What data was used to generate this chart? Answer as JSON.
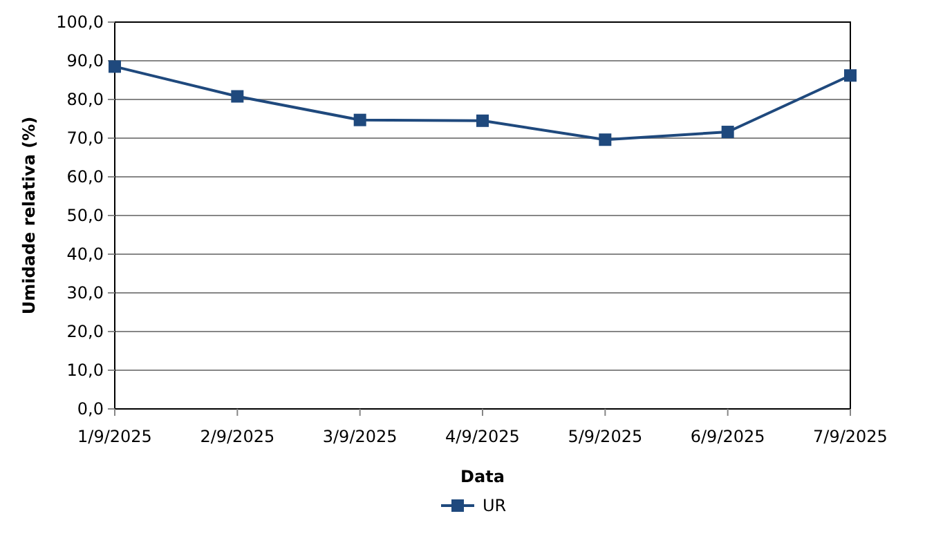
{
  "chart_data": {
    "type": "line",
    "xlabel": "Data",
    "ylabel": "Umidade relativa (%)",
    "categories": [
      "1/9/2025",
      "2/9/2025",
      "3/9/2025",
      "4/9/2025",
      "5/9/2025",
      "6/9/2025",
      "7/9/2025"
    ],
    "series": [
      {
        "name": "UR",
        "color": "#1f497d",
        "values": [
          88.5,
          80.8,
          74.7,
          74.5,
          69.6,
          71.6,
          86.2
        ]
      }
    ],
    "ylim": [
      0,
      100
    ],
    "yticks": [
      {
        "value": 0,
        "label": "0,0"
      },
      {
        "value": 10,
        "label": "10,0"
      },
      {
        "value": 20,
        "label": "20,0"
      },
      {
        "value": 30,
        "label": "30,0"
      },
      {
        "value": 40,
        "label": "40,0"
      },
      {
        "value": 50,
        "label": "50,0"
      },
      {
        "value": 60,
        "label": "60,0"
      },
      {
        "value": 70,
        "label": "70,0"
      },
      {
        "value": 80,
        "label": "80,0"
      },
      {
        "value": 90,
        "label": "90,0"
      },
      {
        "value": 100,
        "label": "100,0"
      }
    ],
    "grid": "y",
    "legend": "bottom",
    "marker": "square",
    "line_style": "solid"
  }
}
